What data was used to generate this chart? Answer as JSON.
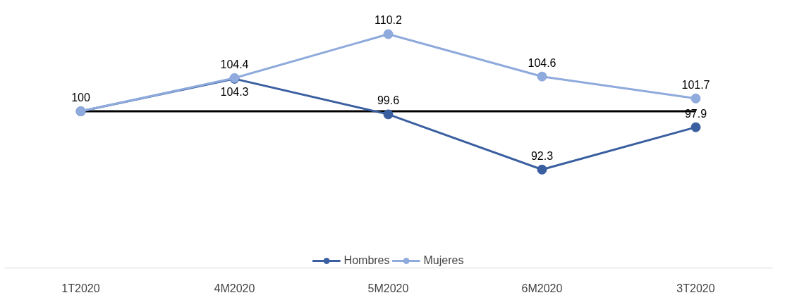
{
  "chart_data": {
    "type": "line",
    "categories": [
      "1T2020",
      "4M2020",
      "5M2020",
      "6M2020",
      "3T2020"
    ],
    "series": [
      {
        "name": "Hombres",
        "color": "#3a5fa0",
        "values": [
          100,
          104.3,
          99.6,
          92.3,
          97.9
        ],
        "value_labels": [
          null,
          "104.3",
          "99.6",
          "92.3",
          "97.9"
        ]
      },
      {
        "name": "Mujeres",
        "color": "#8faadc",
        "values": [
          100,
          104.4,
          110.2,
          104.6,
          101.7
        ],
        "value_labels": [
          "100",
          "104.4",
          "110.2",
          "104.6",
          "101.7"
        ]
      }
    ],
    "tick_labels": "x",
    "grid": false,
    "legend": "bottom",
    "marker": "circle",
    "line_style": "solid",
    "ref_lines": [
      {
        "axis": "y",
        "value": 100,
        "color": "#000000"
      }
    ]
  }
}
